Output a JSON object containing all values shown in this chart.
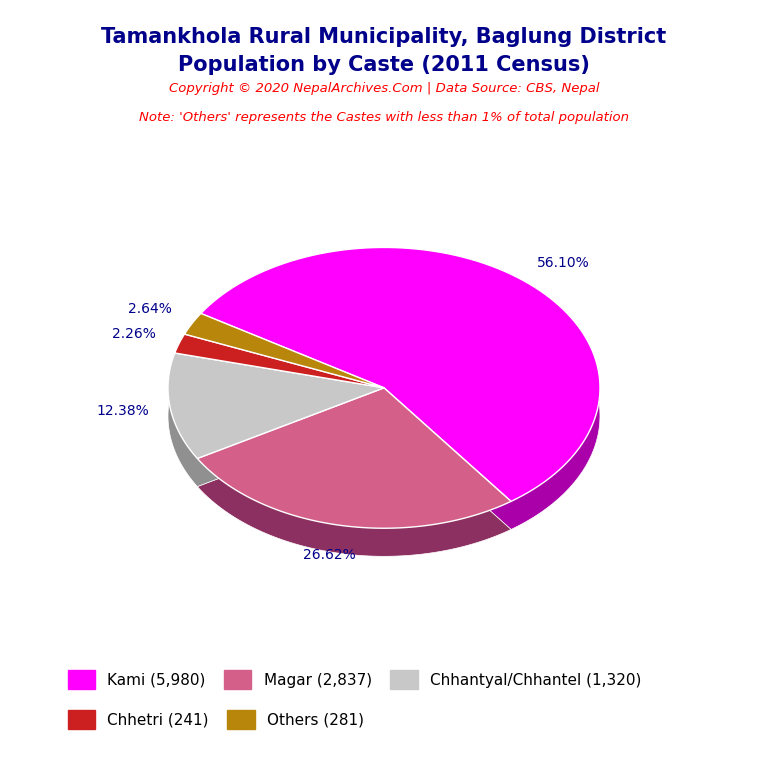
{
  "title_line1": "Tamankhola Rural Municipality, Baglung District",
  "title_line2": "Population by Caste (2011 Census)",
  "title_color": "#00008B",
  "copyright_text": "Copyright © 2020 NepalArchives.Com | Data Source: CBS, Nepal",
  "note_text": "Note: 'Others' represents the Castes with less than 1% of total population",
  "subtitle_color": "#FF0000",
  "labels": [
    "Kami (5,980)",
    "Magar (2,837)",
    "Chhantyal/Chhantel (1,320)",
    "Chhetri (241)",
    "Others (281)"
  ],
  "values": [
    5980,
    2837,
    1320,
    241,
    281
  ],
  "percentages": [
    "56.10%",
    "26.62%",
    "12.38%",
    "2.26%",
    "2.64%"
  ],
  "colors": [
    "#FF00FF",
    "#D4608A",
    "#C8C8C8",
    "#CC2020",
    "#B8860B"
  ],
  "shadow_colors": [
    "#AA00AA",
    "#8B3060",
    "#909090",
    "#8B0000",
    "#7A5800"
  ],
  "pct_label_colors": [
    "#00008B",
    "#00008B",
    "#00008B",
    "#00008B",
    "#00008B"
  ],
  "background_color": "#FFFFFF",
  "legend_fontsize": 11,
  "title_fontsize": 15,
  "startangle": 148
}
